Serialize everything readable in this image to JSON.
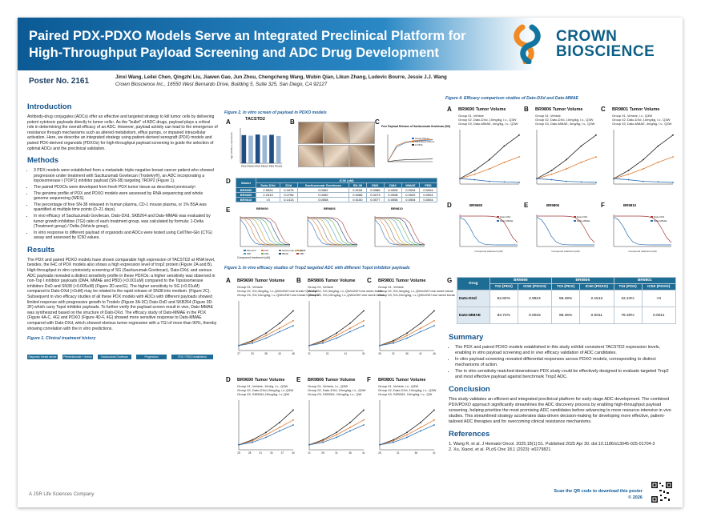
{
  "header": {
    "title_line1": "Paired PDX-PDXO Models Serve an Integrated Preclinical Platform for",
    "title_line2": "High-Throughput Payload Screening and ADC Drug Development",
    "logo_text_line1": "CROWN",
    "logo_text_line2": "BIOSCIENCE"
  },
  "poster_no": "Poster No. 2161",
  "authors": "Jinxi Wang, Leilei Chen, Qingzhi Liu, Jiawen Gao, Jun Zhou, Chengcheng Wang, Wubin Qian, Likun Zhang, Ludevic Bourre, Jessie J.J. Wang",
  "affiliation": "Crown Bioscience Inc., 16550 West Bernardo Drive, Building 5, Suite 325, San Diego, CA 92127",
  "intro": {
    "heading": "Introduction",
    "text": "Antibody-drug conjugates (ADCs) offer an effective and targeted strategy to kill tumor cells by delivering potent cytotoxic payloads directly to tumor cells¹. As the \"bullet\" of ADC drugs, payload plays a critical role in determining the overall efficacy of an ADC. However, payload activity can lead to the emergence of resistance through mechanisms such as altered metabolism, efflux pumps, or impaired intracellular activation. Here, we describe an integrated strategy using patient-derived xenograft (PDX) models and paired PDX-derived organoids (PDXOs) for high-throughput payload screening to guide the selection of optimal ADCs and the preclinical validation."
  },
  "methods": {
    "heading": "Methods",
    "items": [
      "3 PDX models were established from a metastatic triple-negative breast cancer patient who showed progression under treatment with Sacituzumab Govitecan (Trodelvy®), an ADC incorporating a topoisomerase I (TOP1) inhibitor payload (SN-38) targeting TROP2 (Figure 1).",
      "The paired PDXOs were developed from fresh PDX tumor tissue as described previously².",
      "The genome profile of PDX and PDXO models were assessed by RNA sequencing and whole genome sequencing (WES).",
      "The percentage of free SN-38 released in human plasma, CD-1 mouse plasma, or 1% BSA was quantified at multiple time points (0–21 days).",
      "In vivo efficacy of Sacituzumab Govitecan, Dato-DXd, SKB264 and Dato-MMAE was evaluated by tumor growth inhibition (TGI) ratio of each treatment group, was calculated by formula: 1-Delta (Treatment group) / Delta (Vehicle group).",
      "In vitro response to different payload of organoids and ADCs were tested using CellTiter-Glo (CTG) assay and assessed by IC50 values."
    ]
  },
  "results": {
    "heading": "Results",
    "text": "The PDX and paired PDXO models have shown comparable high expression of TACSTD2 at RNA level, besides, the IHC of PDX models also shows a high expression level of trop2 protein (Figure 2A and B). High-throughput in vitro cytotoxicity screening of SG (Sacituzumab Govitecan), Dato-DXd, and various ADC payloads revealed a distinct sensitivity profile in these PDXOs: a higher sensitivity was observed in non-Top I inhibitor payloads (DM4, MMAE and PBD) (<0.001uM) compared to the Topoisomerase inhibitors DxD and SN38 (>0.005uM) (Figure 2D and E). The higher sensitivity to SG (<0.01uM) compared to Dato-DXd (>2uM) may be related to the rapid release of SN38 into medium. (Figure 2C). Subsequent in vivo efficacy studies of all these PDX models with ADCs with different payloads showed limited response with progressive growth to Trodelv (Figure 3A-3C) Dato-DxD and SKB264 (Figure 3D-3F) which carry Topol inhibitor payloads. To further verify the payload screen result in vivo, Dato-MMAE was synthesized based on the structure of Dato-DXd. The efficacy study of Dato-MMAE in the PDX (Figure 4A-C, 4G) and PDXO (Figure 4D-F, 4G) showed more sensitive response to Dato-MMAE compared with Dato-DXd, which showed obvious tumor regression with a TGI of more than 90%, thereby showing correlation with the in vitro predictions."
  },
  "fig1": {
    "title": "Figure 1. Clinical treatment history",
    "steps": [
      "Diagnosis: breast cancer",
      "Pembrolizumab + chemo",
      "Sacituzumab Govitecan",
      "Progression",
      "PDX / PDXO established"
    ]
  },
  "fig2": {
    "title": "Figure 2. In vitro screen of payload in PDXO models",
    "panel_labels": [
      "A",
      "B",
      "C",
      "D",
      "E"
    ],
    "a_title": "TACSTD2",
    "a_ylabel": "log2 (TPM+1) expression",
    "a_categories": [
      "PDX",
      "PDXO",
      "PDX",
      "PDXO",
      "PDX",
      "PDXO"
    ],
    "a_values": [
      9.6,
      9.4,
      9.8,
      9.5,
      9.7,
      9.3
    ],
    "c_title": "Free Payload Release of Sacituzumab Govitecan (SN)",
    "c_legend": [
      "Human Plasma",
      "CD-1 Mouse Plasma",
      "1% BSA"
    ],
    "table_header": [
      "Model",
      "Dato-DXd",
      "DXd",
      "Sacituzumab Govitecan",
      "SN-38",
      "DM1",
      "DM4",
      "MMAE",
      "PBD"
    ],
    "table_supheader": "IC50 (uM)",
    "table_rows": [
      [
        "BR9690",
        "2.9924",
        "0.1675",
        "0.0062",
        "0.0154",
        "0.0086",
        "0.0005",
        "0.0004",
        "0.0004"
      ],
      [
        "BR9806",
        "2.1513",
        "0.0796",
        "0.0050",
        "0.0086",
        "0.0073",
        "0.0008",
        "0.0002",
        "0.0004"
      ],
      [
        "BR9810",
        ">3",
        "0.1413",
        "0.0008",
        "0.0100",
        "0.0077",
        "0.0006",
        "0.0004",
        "0.0004"
      ]
    ],
    "e_titles": [
      "BR9690",
      "BR9806",
      "BR9810"
    ],
    "e_xlabel": "Compound treatment (uM)",
    "e_legend": [
      "Dato-DXd",
      "DXd",
      "Sacituzumab govitecan",
      "SN-38",
      "DM1",
      "DM4",
      "MMAE",
      "PBD"
    ]
  },
  "fig3": {
    "title": "Figure 3. In vivo efficacy studies of Trop2 targeted ADC with different TopoI inhibitor payloads",
    "panels": [
      {
        "label": "A",
        "title": "BR9690 Tumor Volume",
        "legend": [
          "Group 01, Vehicle",
          "Group 02, SG,3mg/kg, i.v.,QW/x2W+one break+QWx1W",
          "Group 03, SG,10mg/kg, i.v.,QW/x2W+one break+QWx1W"
        ],
        "xticks": [
          "27",
          "33",
          "38",
          "43",
          "48"
        ]
      },
      {
        "label": "B",
        "title": "BR9806 Tumor Volume",
        "legend": [
          "Group 01, Vehicle",
          "Group 02, SG,3mg/kg, i.v.,QW/x2W+one week break",
          "Group 03, SG,10mg/kg, i.v.,QW/x2W+one week break"
        ],
        "xticks": [
          "21",
          "31",
          "41",
          "51"
        ]
      },
      {
        "label": "C",
        "title": "BR9801 Tumor Volume",
        "legend": [
          "Group 01, Vehicle",
          "Group 02, SG,3mg/kg, i.v.,QW/x2W+one week break",
          "Group 03, SG,10mg/kg, i.v.,QW/x2W+one week break"
        ],
        "xticks": [
          "26",
          "31",
          "36",
          "41",
          "46"
        ]
      },
      {
        "label": "D",
        "title": "BR9690 Tumor Volume",
        "legend": [
          "Group 01, Vehicle, 10ul/g, i.v., Q3W",
          "Group 02, Dato-DXd,10mg/kg, i.v.,Q3W",
          "Group 03, SKB264,10mg/kg, i.v.,QW"
        ],
        "xticks": [
          "25",
          "28",
          "31",
          "34",
          "37",
          "40"
        ]
      },
      {
        "label": "E",
        "title": "BR9806 Tumor Volume",
        "legend": [
          "Group 01, Vehicle, i.v., Q3W",
          "Group 02, Dato-DXd, 10mg/kg, i.v., Q3W",
          "Group 03, SKB264, 10mg/kg, i.v., QW"
        ],
        "xticks": [
          "21",
          "26",
          "31",
          "36",
          "41"
        ]
      },
      {
        "label": "F",
        "title": "BR9801 Tumor Volume",
        "legend": [
          "Group 01, Vehicle, i.v., Q3W",
          "Group 02, Dato-DXd, 10mg/kg, i.v., Q3W",
          "Group 03, SKB264, 10mg/kg, i.v., QW"
        ],
        "xticks": [
          "26",
          "31",
          "36",
          "41"
        ]
      }
    ],
    "xlabel": "Study Days",
    "ylabel": "Tumor Volume (mm³)"
  },
  "fig4": {
    "title": "Figure 4. Efficacy comparison studies of Dato-DXd and Dato-MMAE",
    "panels": [
      {
        "label": "A",
        "title": "BR9690 Tumor Volume",
        "legend": [
          "Group 01, Vehicle",
          "Group 02, Dato-DXd, 10mg/kg, i.v., Q3W",
          "Group 03, Dato-MMAE, 4mg/kg, i.v., Q3W"
        ]
      },
      {
        "label": "B",
        "title": "BR9806 Tumor Volume",
        "legend": [
          "Group 01, Vehicle",
          "Group 02, Dato-DXd, 10mg/kg, i.v., Q3W",
          "Group 03, Dato-MMAE, 4mg/kg, i.v., Q3W"
        ]
      },
      {
        "label": "C",
        "title": "BR9801 Tumor Volume",
        "legend": [
          "Group 01, Vehicle, i.v., Q3W",
          "Group 02, Dato-DXd, 10mg/kg, i.v., Q3W",
          "Group 03, Dato-MMAE, 4mg/kg, i.v., Q3W"
        ]
      }
    ],
    "ivt_panels": [
      {
        "label": "D",
        "title": "BR9690"
      },
      {
        "label": "E",
        "title": "BR9806"
      },
      {
        "label": "F",
        "title": "BR9810"
      }
    ],
    "ivt_legend": [
      "Dato-DXd",
      "Dato-MMAE"
    ],
    "ivt_xlabel": "Compound treatment (uM)",
    "table": {
      "label": "G",
      "groups": [
        "BR9690",
        "BR9806",
        "BR9801"
      ],
      "cols": [
        "TGI (PDX)",
        "IC50 (PDXO)",
        "TGI (PDX)",
        "IC50 (PDXO)",
        "TGI (PDX)",
        "IC50 (PDXO)"
      ],
      "drug_header": "Drug",
      "rows": [
        [
          "Dato-DXd",
          "52.82%",
          "2.9924",
          "59.49%",
          "2.1513",
          "22.24%",
          ">3"
        ],
        [
          "Dato-MMAE",
          "83.72%",
          "0.0015",
          "96.46%",
          "0.0011",
          "76.30%",
          "0.0011"
        ]
      ]
    }
  },
  "summary": {
    "heading": "Summary",
    "items": [
      "The PDX and paired PDXO models established in this study exhibit consistent TACSTD2 expression levels, enabling in vitro payload screening and in vivo efficacy validation of ADC candidates.",
      "In vitro payload screening revealed differential responses across PDXO models, corresponding to distinct mechanisms of action.",
      "The in vitro sensitivity matched downstream PDX study could be effectively designed to evaluate targeted Trop2 and most effective payload against benchmark Trop2 ADC."
    ]
  },
  "conclusion": {
    "heading": "Conclusion",
    "text": "This study validates an efficient and integrated preclinical platform for early-stage ADC development. The combined PDX/PDXO approach significantly streamlines the ADC discovery process by enabling high-throughput payload screening, helping prioritize the most promising ADC candidates before advancing to more resource-intensive in vivo studies. This streamlined strategy accelerates data-driven decision-making for developing more effective, patient-tailored ADC therapies and for overcoming clinical resistance mechanisms."
  },
  "references": {
    "heading": "References",
    "items": [
      "1. Wang R, et al. J Hematol Oncol. 2025;18(1):51. Published 2025 Apr 30. doi:10.1186/s13045-025-01704-3",
      "2. Xu, Xiaoxi, et al. PLoS One 18.1 (2023): e0279821"
    ]
  },
  "footer": {
    "company": "A JSR Life Sciences Company",
    "qr_text": "Scan the QR code to download this poster",
    "copyright": "© 2026"
  },
  "colors": {
    "header_dark": "#0b5a95",
    "header_light": "#2a88c5",
    "heading_blue": "#13528a",
    "vehicle": "#222222",
    "group2": "#e07b2e",
    "group3": "#2b6fb5"
  }
}
